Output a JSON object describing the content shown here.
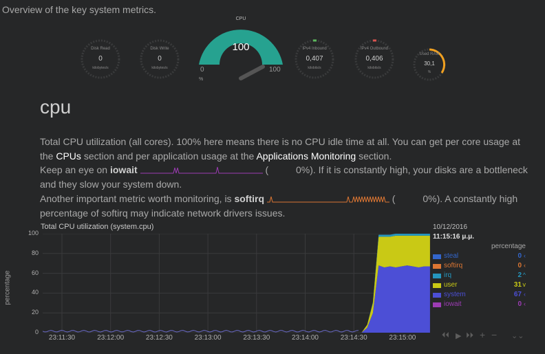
{
  "header": {
    "overview_text": "Overview of the key system metrics."
  },
  "gauges": {
    "disk_read": {
      "label": "Disk Read",
      "value": "0",
      "unit": "kilobytes/s"
    },
    "disk_write": {
      "label": "Disk Write",
      "value": "0",
      "unit": "kilobytes/s"
    },
    "cpu": {
      "title": "CPU",
      "value": "100",
      "min": "0",
      "max": "100",
      "unit": "%",
      "fraction": 1.0
    },
    "ipv4_inbound": {
      "label": "IPv4 Inbound",
      "value": "0,407",
      "unit": "kilobits/s"
    },
    "ipv4_outbound": {
      "label": "IPv4 Outbound",
      "value": "0,406",
      "unit": "kilobits/s"
    },
    "used_ram": {
      "label": "Used RAM",
      "value": "30,1",
      "unit": "%",
      "fraction": 0.301
    }
  },
  "section": {
    "title": "cpu",
    "p1_text1": "Total CPU utilization (all cores). 100% here means there is no CPU idle time at all. You can get per core usage at the",
    "p1_link1": "CPUs",
    "p1_text2": "section and per application usage at the",
    "p1_link2": "Applications Monitoring",
    "p1_text3": "section.",
    "p2_text1": "Keep an eye on",
    "p2_bold": "iowait",
    "p2_text2": "(",
    "p2_text3": "0%). If it is constantly high, your disks are a bottleneck and they slow your system down.",
    "p3_text1": "Another important metric worth monitoring, is",
    "p3_bold": "softirq",
    "p3_text2": "(",
    "p3_text3": "0%). A constantly high percentage of softirq may indicate network drivers issues."
  },
  "chart_data": {
    "type": "area",
    "title": "Total CPU utilization (system.cpu)",
    "ylabel": "percentage",
    "ylim": [
      0,
      100
    ],
    "yticks": [
      "100",
      "80",
      "60",
      "40",
      "20",
      "0"
    ],
    "xticks": [
      "23:11:30",
      "23:12:00",
      "23:12:30",
      "23:13:00",
      "23:13:30",
      "23:14:00",
      "23:14:30",
      "23:15:00"
    ],
    "stacked_series_order": [
      "iowait",
      "system",
      "user",
      "irq",
      "softirq",
      "steal"
    ],
    "series": [
      {
        "name": "steal",
        "color": "#3366cc",
        "current": "0",
        "arrow": "‹"
      },
      {
        "name": "softirq",
        "color": "#dc7633",
        "current": "0",
        "arrow": "‹"
      },
      {
        "name": "irq",
        "color": "#2596be",
        "current": "2",
        "arrow": "^"
      },
      {
        "name": "user",
        "color": "#c9c915",
        "current": "31",
        "arrow": "v"
      },
      {
        "name": "system",
        "color": "#4c4fd6",
        "current": "67",
        "arrow": "‹"
      },
      {
        "name": "iowait",
        "color": "#9c3cb4",
        "current": "0",
        "arrow": "‹"
      }
    ],
    "system_values_spike": [
      0,
      0,
      5,
      20,
      68,
      66,
      67,
      66,
      67,
      68,
      67,
      66,
      67,
      67
    ],
    "user_values_spike": [
      0,
      0,
      3,
      10,
      29,
      31,
      30,
      32,
      31,
      30,
      31,
      32,
      31,
      31
    ],
    "irq_values_spike": [
      0,
      0,
      0,
      1,
      2,
      2,
      2,
      2,
      2,
      2,
      2,
      2,
      2,
      2
    ]
  },
  "legend": {
    "date": "10/12/2016",
    "time": "11:15:16 μ.μ.",
    "unit": "percentage"
  },
  "nav": {
    "back2": "⏴⏴",
    "play": "▶",
    "fwd": "⏵⏵",
    "plus": "+",
    "minus": "−",
    "collapse": "⌄⌄"
  }
}
